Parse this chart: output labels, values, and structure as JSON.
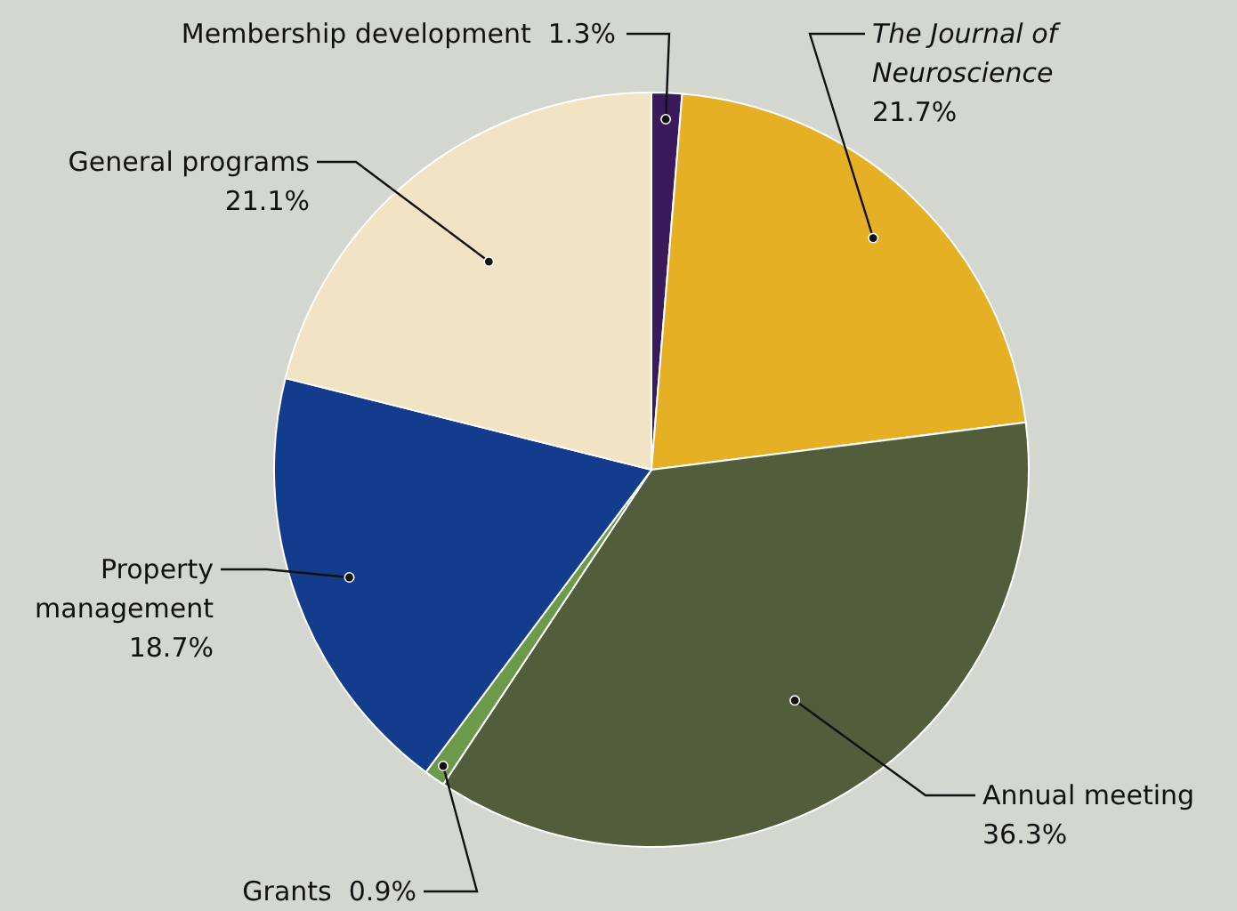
{
  "chart_data": {
    "type": "pie",
    "categories": [
      "Membership development",
      "The Journal of Neuroscience",
      "Annual meeting",
      "Grants",
      "Property management",
      "General programs"
    ],
    "values": [
      1.3,
      21.7,
      36.3,
      0.9,
      18.7,
      21.1
    ],
    "value_labels": [
      "1.3%",
      "21.7%",
      "36.3%",
      "0.9%",
      "18.7%",
      "21.1%"
    ],
    "colors": [
      "#3b1a5c",
      "#e6b024",
      "#525e3b",
      "#6a9a4a",
      "#143c8c",
      "#f1e3c3"
    ]
  }
}
